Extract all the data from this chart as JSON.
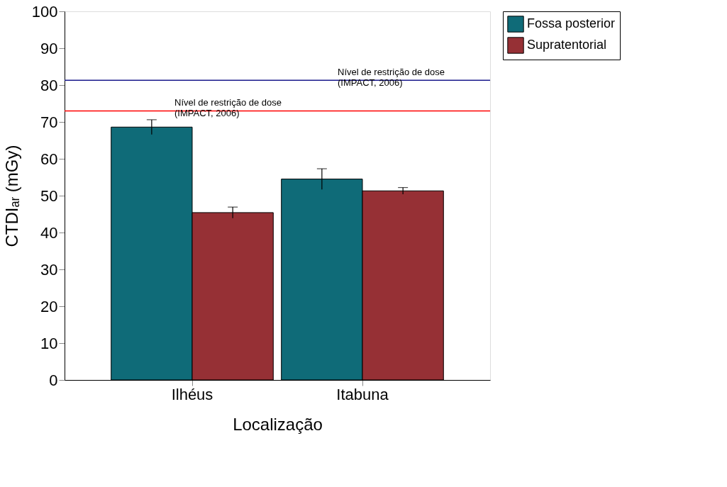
{
  "chart_data": {
    "type": "bar",
    "xlabel": "Localização",
    "ylabel": "CTDIₐᵣ (mGy)",
    "categories": [
      "Ilhéus",
      "Itabuna"
    ],
    "series": [
      {
        "name": "Fossa posterior",
        "color": "#0f6b78",
        "values": [
          68.6,
          54.5
        ],
        "errors": [
          2.0,
          2.8
        ]
      },
      {
        "name": "Supratentorial",
        "color": "#963035",
        "values": [
          45.4,
          51.3
        ],
        "errors": [
          1.5,
          0.9
        ]
      }
    ],
    "ylim": [
      0,
      100
    ],
    "yticks": [
      0,
      10,
      20,
      30,
      40,
      50,
      60,
      70,
      80,
      90,
      100
    ],
    "ref_lines": [
      {
        "axis": "y",
        "value": 73.0,
        "label": "Nível de restrição de dose\n(IMPACT, 2006)",
        "color": "#ff0000"
      },
      {
        "axis": "y",
        "value": 81.3,
        "label": "Nível de restrição de dose\n(IMPACT, 2006)",
        "color": "#1a1a8c"
      }
    ],
    "grid": false,
    "legend": "top right"
  }
}
